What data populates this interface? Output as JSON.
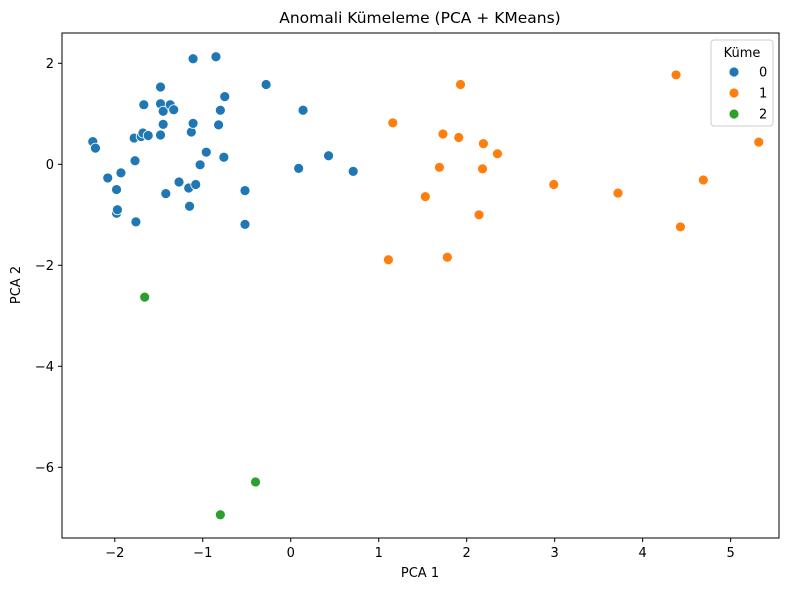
{
  "chart_data": {
    "type": "scatter",
    "title": "Anomali Kümeleme (PCA + KMeans)",
    "xlabel": "PCA 1",
    "ylabel": "PCA 2",
    "xlim": [
      -2.6,
      5.55
    ],
    "ylim": [
      -7.4,
      2.6
    ],
    "xticks": [
      -2,
      -1,
      0,
      1,
      2,
      3,
      4,
      5
    ],
    "yticks": [
      2,
      0,
      -2,
      -4,
      -6
    ],
    "grid": false,
    "legend": {
      "title": "Küme",
      "placement": "top-right"
    },
    "series": [
      {
        "name": "0",
        "color": "#1f77b4",
        "points": [
          [
            -2.25,
            0.45
          ],
          [
            -2.22,
            0.32
          ],
          [
            -2.08,
            -0.27
          ],
          [
            -1.98,
            -0.97
          ],
          [
            -1.97,
            -0.9
          ],
          [
            -1.98,
            -0.5
          ],
          [
            -1.93,
            -0.17
          ],
          [
            -1.78,
            0.52
          ],
          [
            -1.77,
            0.07
          ],
          [
            -1.76,
            -1.14
          ],
          [
            -1.7,
            0.55
          ],
          [
            -1.68,
            0.62
          ],
          [
            -1.67,
            1.18
          ],
          [
            -1.62,
            0.57
          ],
          [
            -1.48,
            1.53
          ],
          [
            -1.48,
            1.2
          ],
          [
            -1.48,
            0.58
          ],
          [
            -1.45,
            1.05
          ],
          [
            -1.45,
            0.79
          ],
          [
            -1.42,
            -0.58
          ],
          [
            -1.37,
            1.18
          ],
          [
            -1.33,
            1.08
          ],
          [
            -1.27,
            -0.35
          ],
          [
            -1.16,
            -0.47
          ],
          [
            -1.15,
            -0.83
          ],
          [
            -1.13,
            0.64
          ],
          [
            -1.11,
            0.81
          ],
          [
            -1.11,
            2.09
          ],
          [
            -1.08,
            -0.4
          ],
          [
            -1.03,
            -0.01
          ],
          [
            -0.96,
            0.24
          ],
          [
            -0.85,
            2.13
          ],
          [
            -0.82,
            0.78
          ],
          [
            -0.8,
            1.07
          ],
          [
            -0.75,
            1.34
          ],
          [
            -0.76,
            0.14
          ],
          [
            -0.52,
            -0.52
          ],
          [
            -0.52,
            -1.19
          ],
          [
            -0.28,
            1.58
          ],
          [
            0.09,
            -0.08
          ],
          [
            0.14,
            1.07
          ],
          [
            0.43,
            0.17
          ],
          [
            0.71,
            -0.14
          ]
        ]
      },
      {
        "name": "1",
        "color": "#ff7f0e",
        "points": [
          [
            1.11,
            -1.89
          ],
          [
            1.16,
            0.82
          ],
          [
            1.53,
            -0.64
          ],
          [
            1.69,
            -0.06
          ],
          [
            1.73,
            0.6
          ],
          [
            1.78,
            -1.84
          ],
          [
            1.91,
            0.53
          ],
          [
            1.93,
            1.58
          ],
          [
            2.14,
            -1.0
          ],
          [
            2.18,
            -0.09
          ],
          [
            2.19,
            0.41
          ],
          [
            2.35,
            0.21
          ],
          [
            2.99,
            -0.4
          ],
          [
            3.72,
            -0.57
          ],
          [
            4.38,
            1.77
          ],
          [
            4.43,
            -1.24
          ],
          [
            4.69,
            -0.31
          ],
          [
            5.32,
            0.44
          ]
        ]
      },
      {
        "name": "2",
        "color": "#2ca02c",
        "points": [
          [
            -1.66,
            -2.63
          ],
          [
            -0.4,
            -6.29
          ],
          [
            -0.8,
            -6.94
          ]
        ]
      }
    ]
  }
}
